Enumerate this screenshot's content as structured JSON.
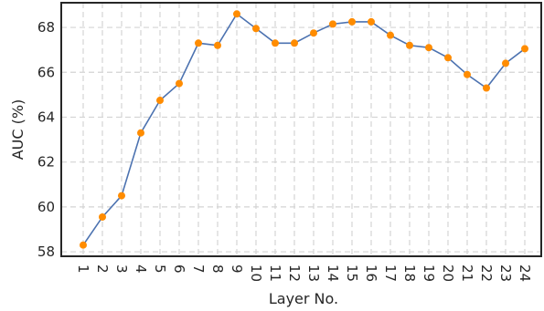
{
  "chart_data": {
    "type": "line",
    "xlabel": "Layer No.",
    "ylabel": "AUC (%)",
    "categories": [
      "1",
      "2",
      "3",
      "4",
      "5",
      "6",
      "7",
      "8",
      "9",
      "10",
      "11",
      "12",
      "13",
      "14",
      "15",
      "16",
      "17",
      "18",
      "19",
      "20",
      "21",
      "22",
      "23",
      "24"
    ],
    "series": [
      {
        "values": [
          58.3,
          59.55,
          60.5,
          63.3,
          64.75,
          65.5,
          67.3,
          67.2,
          68.6,
          67.95,
          67.3,
          67.3,
          67.75,
          68.15,
          68.25,
          68.25,
          67.65,
          67.2,
          67.1,
          66.65,
          65.9,
          65.3,
          66.4,
          67.05
        ],
        "line_color": "#4c72b0",
        "marker_color": "#ff8c00"
      }
    ],
    "yticks": [
      58,
      60,
      62,
      64,
      66,
      68
    ],
    "ylim": [
      57.8,
      69.1
    ],
    "grid": true
  }
}
